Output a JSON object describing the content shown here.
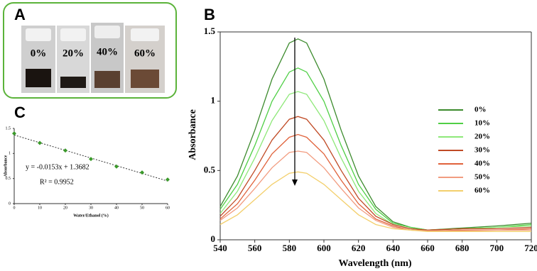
{
  "photo": {
    "label": "A",
    "vial_labels": [
      "0%",
      "20%",
      "40%",
      "60%"
    ]
  },
  "chart_data": [
    {
      "type": "line",
      "label": "B",
      "x_label": "Wavelength (nm)",
      "y_label": "Absorbance",
      "x": [
        540,
        550,
        560,
        570,
        580,
        585,
        590,
        600,
        610,
        620,
        630,
        640,
        650,
        660,
        680,
        700,
        720
      ],
      "xlim": [
        540,
        720
      ],
      "xticks": [
        540,
        560,
        580,
        600,
        620,
        640,
        660,
        680,
        700,
        720
      ],
      "ylim": [
        0,
        1.5
      ],
      "yticks": [
        0,
        0.5,
        1,
        1.5
      ],
      "series": [
        {
          "name": "0%",
          "color": "#3b8a2c",
          "values": [
            0.24,
            0.46,
            0.79,
            1.16,
            1.42,
            1.45,
            1.42,
            1.16,
            0.79,
            0.46,
            0.24,
            0.13,
            0.09,
            0.07,
            0.085,
            0.1,
            0.12
          ]
        },
        {
          "name": "10%",
          "color": "#4fcf45",
          "values": [
            0.22,
            0.4,
            0.68,
            1.0,
            1.21,
            1.24,
            1.21,
            1.0,
            0.68,
            0.4,
            0.22,
            0.12,
            0.09,
            0.07,
            0.08,
            0.09,
            0.11
          ]
        },
        {
          "name": "20%",
          "color": "#8ee879",
          "values": [
            0.19,
            0.35,
            0.59,
            0.86,
            1.05,
            1.07,
            1.05,
            0.86,
            0.59,
            0.35,
            0.19,
            0.11,
            0.08,
            0.07,
            0.08,
            0.09,
            0.1
          ]
        },
        {
          "name": "30%",
          "color": "#c04a25",
          "values": [
            0.17,
            0.3,
            0.5,
            0.72,
            0.87,
            0.89,
            0.87,
            0.72,
            0.5,
            0.3,
            0.17,
            0.11,
            0.08,
            0.07,
            0.08,
            0.08,
            0.09
          ]
        },
        {
          "name": "40%",
          "color": "#e0623b",
          "values": [
            0.15,
            0.26,
            0.43,
            0.62,
            0.74,
            0.76,
            0.74,
            0.62,
            0.43,
            0.26,
            0.15,
            0.1,
            0.07,
            0.065,
            0.07,
            0.07,
            0.08
          ]
        },
        {
          "name": "50%",
          "color": "#f29c80",
          "values": [
            0.14,
            0.23,
            0.37,
            0.52,
            0.63,
            0.64,
            0.63,
            0.52,
            0.37,
            0.23,
            0.14,
            0.09,
            0.07,
            0.065,
            0.065,
            0.07,
            0.07
          ]
        },
        {
          "name": "60%",
          "color": "#f3cf6c",
          "values": [
            0.11,
            0.18,
            0.29,
            0.4,
            0.48,
            0.49,
            0.48,
            0.4,
            0.29,
            0.18,
            0.11,
            0.08,
            0.07,
            0.06,
            0.06,
            0.06,
            0.06
          ]
        }
      ]
    },
    {
      "type": "scatter",
      "label": "C",
      "x_label": "Water/Ethanol (%)",
      "y_label": "Absorbance",
      "x": [
        0,
        10,
        20,
        30,
        40,
        50,
        60
      ],
      "values": [
        1.4,
        1.21,
        1.06,
        0.89,
        0.74,
        0.62,
        0.48
      ],
      "color": "#3a9a2a",
      "xlim": [
        0,
        60
      ],
      "xticks": [
        0,
        10,
        20,
        30,
        40,
        50,
        60
      ],
      "ylim": [
        0,
        1.5
      ],
      "yticks": [
        0,
        0.5,
        1,
        1.5
      ],
      "trendline": {
        "slope": -0.0153,
        "intercept": 1.3682,
        "equation": "y = -0.0153x + 1.3682",
        "r_squared": "R² = 0.9952"
      }
    }
  ]
}
